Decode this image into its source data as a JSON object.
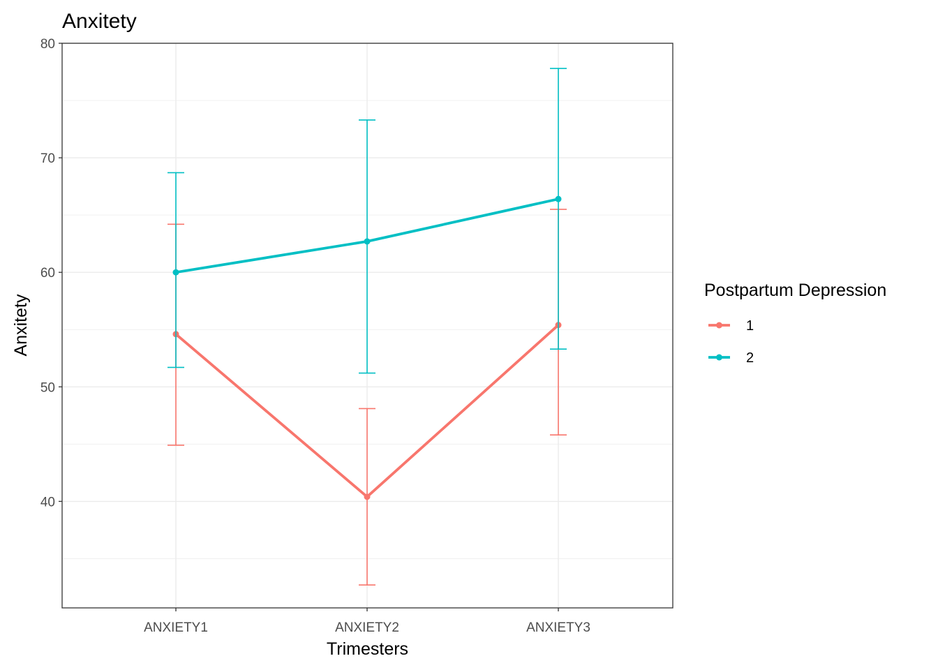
{
  "chart_data": {
    "type": "line",
    "title": "Anxitety",
    "xlabel": "Trimesters",
    "ylabel": "Anxitety",
    "categories": [
      "ANXIETY1",
      "ANXIETY2",
      "ANXIETY3"
    ],
    "ylim": [
      30.7,
      80
    ],
    "yticks": [
      40,
      50,
      60,
      70,
      80
    ],
    "grid": true,
    "legend": {
      "title": "Postpartum Depression",
      "placement": "right"
    },
    "series": [
      {
        "name": "1",
        "color": "#F8766D",
        "values": [
          54.6,
          40.4,
          55.4
        ],
        "lower": [
          44.9,
          32.7,
          45.8
        ],
        "upper": [
          64.2,
          48.1,
          65.5
        ]
      },
      {
        "name": "2",
        "color": "#00BFC4",
        "values": [
          60.0,
          62.7,
          66.4
        ],
        "lower": [
          51.7,
          51.2,
          53.3
        ],
        "upper": [
          68.7,
          73.3,
          77.8
        ]
      }
    ]
  }
}
